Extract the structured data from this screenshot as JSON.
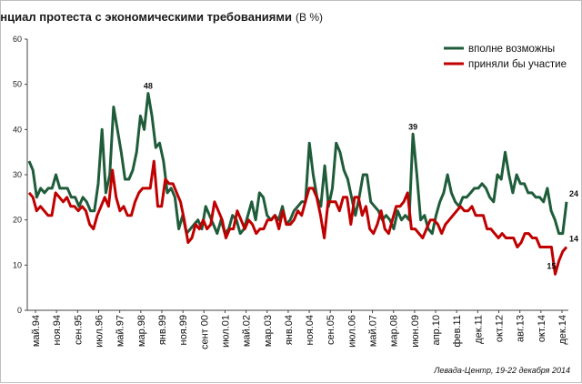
{
  "chart_data": {
    "type": "line",
    "title": "Потенциал протеста с экономическими требованиями",
    "subtitle": "(В %)",
    "ylim": [
      0,
      60
    ],
    "yticks": [
      0,
      10,
      20,
      30,
      40,
      50,
      60
    ],
    "grid": false,
    "legend_position": "top-right",
    "x_tick_labels": [
      "май.94",
      "ноя.94",
      "сен.95",
      "июл.96",
      "май.97",
      "мар.98",
      "янв.99",
      "ноя.99",
      "сент 00",
      "июл.01",
      "май.02",
      "мар.03",
      "янв.04",
      "ноя.04",
      "сен.05",
      "июл.06",
      "май.07",
      "мар.08",
      "июн.09",
      "апр.10",
      "фев.11",
      "дек.11",
      "окт.12",
      "авг.13",
      "окт.14",
      "дек.14"
    ],
    "series": [
      {
        "name": "вполне возможны",
        "color": "#1f5c3a",
        "values": [
          33,
          31,
          25,
          27,
          26,
          27,
          27,
          30,
          27,
          27,
          27,
          25,
          25,
          23,
          25,
          24,
          22,
          22,
          28,
          40,
          26,
          30,
          45,
          40,
          35,
          29,
          29,
          31,
          35,
          43,
          40,
          48,
          43,
          36,
          37,
          33,
          26,
          27,
          25,
          18,
          21,
          17,
          18,
          19,
          20,
          18,
          23,
          21,
          19,
          17,
          20,
          17,
          18,
          21,
          20,
          17,
          18,
          21,
          24,
          20,
          26,
          25,
          21,
          20,
          21,
          20,
          23,
          19,
          20,
          22,
          23,
          24,
          24,
          37,
          30,
          25,
          23,
          32,
          23,
          27,
          37,
          35,
          31,
          29,
          25,
          21,
          25,
          30,
          30,
          24,
          23,
          22,
          20,
          21,
          20,
          18,
          22,
          20,
          21,
          20,
          39,
          30,
          20,
          21,
          18,
          17,
          21,
          24,
          26,
          30,
          26,
          24,
          23,
          25,
          25,
          26,
          27,
          27,
          28,
          27,
          25,
          24,
          30,
          29,
          35,
          30,
          26,
          30,
          28,
          28,
          26,
          26,
          25,
          25,
          24,
          27,
          22,
          20,
          17,
          17,
          24
        ],
        "annotations": [
          {
            "label": "48",
            "value": 48
          },
          {
            "label": "39",
            "value": 39
          },
          {
            "label": "24",
            "value": 24
          }
        ]
      },
      {
        "name": "приняли бы участие",
        "color": "#c00000",
        "values": [
          26,
          25,
          22,
          23,
          22,
          21,
          21,
          26,
          25,
          24,
          25,
          23,
          23,
          22,
          23,
          22,
          19,
          18,
          21,
          23,
          25,
          23,
          31,
          25,
          22,
          23,
          21,
          21,
          24,
          26,
          27,
          27,
          27,
          33,
          23,
          23,
          29,
          28,
          28,
          26,
          24,
          20,
          15,
          16,
          19,
          18,
          20,
          18,
          19,
          24,
          22,
          20,
          16,
          18,
          18,
          22,
          20,
          18,
          20,
          19,
          17,
          18,
          18,
          20,
          20,
          21,
          18,
          22,
          19,
          19,
          20,
          22,
          21,
          24,
          27,
          27,
          25,
          21,
          16,
          24,
          24,
          24,
          22,
          25,
          25,
          19,
          25,
          25,
          21,
          23,
          18,
          17,
          19,
          22,
          18,
          17,
          20,
          23,
          23,
          24,
          26,
          18,
          18,
          17,
          16,
          18,
          20,
          20,
          19,
          17,
          19,
          20,
          21,
          22,
          23,
          22,
          22,
          23,
          21,
          21,
          21,
          18,
          18,
          17,
          16,
          17,
          16,
          16,
          16,
          14,
          15,
          17,
          17,
          16,
          16,
          14,
          14,
          14,
          14,
          8,
          11,
          13,
          14
        ],
        "annotations": [
          {
            "label": "15",
            "value": 15
          },
          {
            "label": "14",
            "value": 14
          }
        ]
      }
    ],
    "source": "Левада-Центр, 19-22 декабря 2014"
  }
}
